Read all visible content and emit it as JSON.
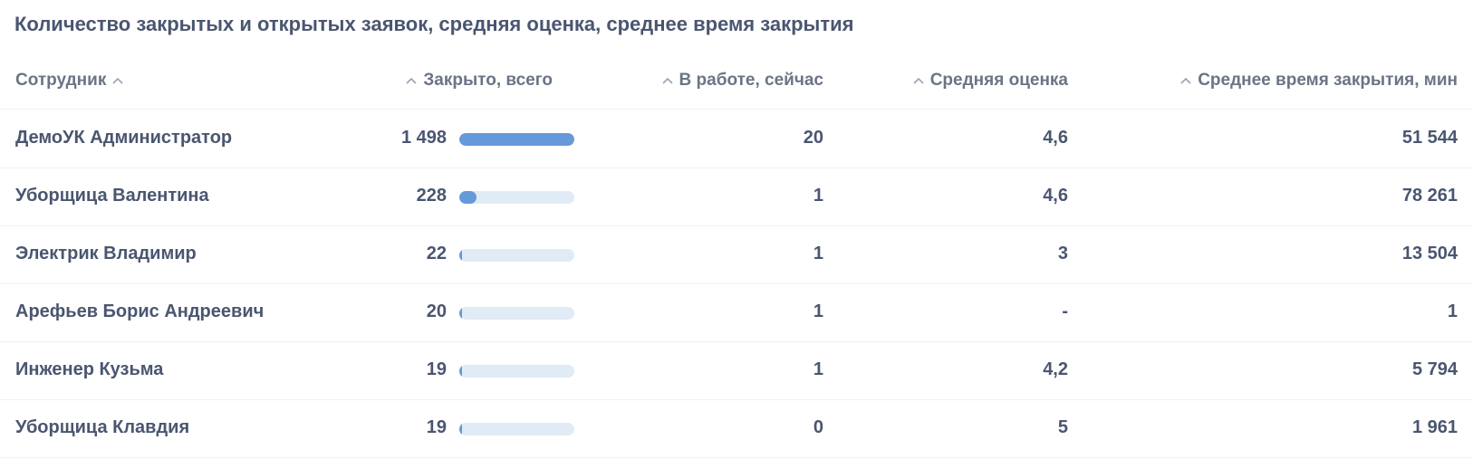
{
  "title": "Количество закрытых и открытых заявок, средняя оценка, среднее время закрытия",
  "columns": {
    "employee": "Сотрудник",
    "closed_total": "Закрыто, всего",
    "in_work_now": "В работе, сейчас",
    "avg_rating": "Средняя оценка",
    "avg_close_time": "Среднее время закрытия, мин"
  },
  "rows": [
    {
      "employee": "ДемоУК Администратор",
      "closed_total": "1 498",
      "closed_fraction": 1.0,
      "in_work_now": "20",
      "avg_rating": "4,6",
      "avg_close_time": "51 544"
    },
    {
      "employee": "Уборщица Валентина",
      "closed_total": "228",
      "closed_fraction": 0.152,
      "in_work_now": "1",
      "avg_rating": "4,6",
      "avg_close_time": "78 261"
    },
    {
      "employee": "Электрик Владимир",
      "closed_total": "22",
      "closed_fraction": 0.015,
      "in_work_now": "1",
      "avg_rating": "3",
      "avg_close_time": "13 504"
    },
    {
      "employee": "Арефьев Борис Андреевич",
      "closed_total": "20",
      "closed_fraction": 0.013,
      "in_work_now": "1",
      "avg_rating": "-",
      "avg_close_time": "1"
    },
    {
      "employee": "Инженер Кузьма",
      "closed_total": "19",
      "closed_fraction": 0.013,
      "in_work_now": "1",
      "avg_rating": "4,2",
      "avg_close_time": "5 794"
    },
    {
      "employee": "Уборщица Клавдия",
      "closed_total": "19",
      "closed_fraction": 0.013,
      "in_work_now": "0",
      "avg_rating": "5",
      "avg_close_time": "1 961"
    }
  ],
  "icons": {
    "sort": "chevron-up-icon"
  },
  "colors": {
    "bar_fill": "#6699d9",
    "bar_track": "#e1ebf6",
    "text": "#4a5670",
    "header_text": "#6b7485"
  }
}
